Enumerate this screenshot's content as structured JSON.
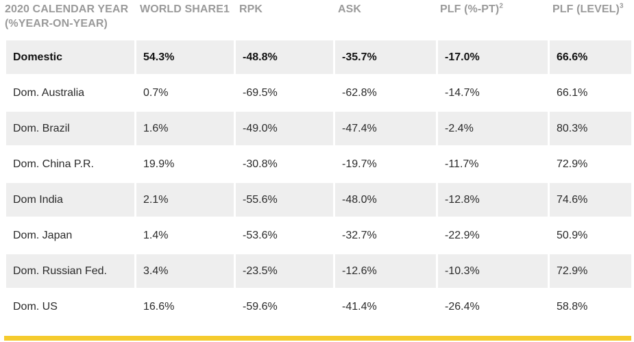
{
  "header": {
    "col0_line1": "2020 CALENDAR YEAR",
    "col0_line2": "(%YEAR-ON-YEAR)",
    "col1": "WORLD SHARE1",
    "col2": "RPK",
    "col3": "ASK",
    "col4": "PLF (%-PT)",
    "col4_sup": "2",
    "col5": "PLF (LEVEL)",
    "col5_sup": "3"
  },
  "rows": [
    {
      "market": "Domestic",
      "share": "54.3%",
      "rpk": "-48.8%",
      "ask": "-35.7%",
      "plf_pt": "-17.0%",
      "plf_level": "66.6%"
    },
    {
      "market": "Dom. Australia",
      "share": "0.7%",
      "rpk": "-69.5%",
      "ask": "-62.8%",
      "plf_pt": "-14.7%",
      "plf_level": "66.1%"
    },
    {
      "market": "Dom. Brazil",
      "share": "1.6%",
      "rpk": "-49.0%",
      "ask": "-47.4%",
      "plf_pt": "-2.4%",
      "plf_level": "80.3%"
    },
    {
      "market": "Dom. China P.R.",
      "share": "19.9%",
      "rpk": "-30.8%",
      "ask": "-19.7%",
      "plf_pt": "-11.7%",
      "plf_level": "72.9%"
    },
    {
      "market": "Dom India",
      "share": "2.1%",
      "rpk": "-55.6%",
      "ask": "-48.0%",
      "plf_pt": "-12.8%",
      "plf_level": "74.6%"
    },
    {
      "market": "Dom. Japan",
      "share": "1.4%",
      "rpk": "-53.6%",
      "ask": "-32.7%",
      "plf_pt": "-22.9%",
      "plf_level": "50.9%"
    },
    {
      "market": "Dom. Russian Fed.",
      "share": "3.4%",
      "rpk": "-23.5%",
      "ask": "-12.6%",
      "plf_pt": "-10.3%",
      "plf_level": "72.9%"
    },
    {
      "market": "Dom. US",
      "share": "16.6%",
      "rpk": "-59.6%",
      "ask": "-41.4%",
      "plf_pt": "-26.4%",
      "plf_level": "58.8%"
    }
  ],
  "colors": {
    "shade": "#eeeeee",
    "accent": "#f5cb2e",
    "header_text": "#9a9a9a"
  }
}
